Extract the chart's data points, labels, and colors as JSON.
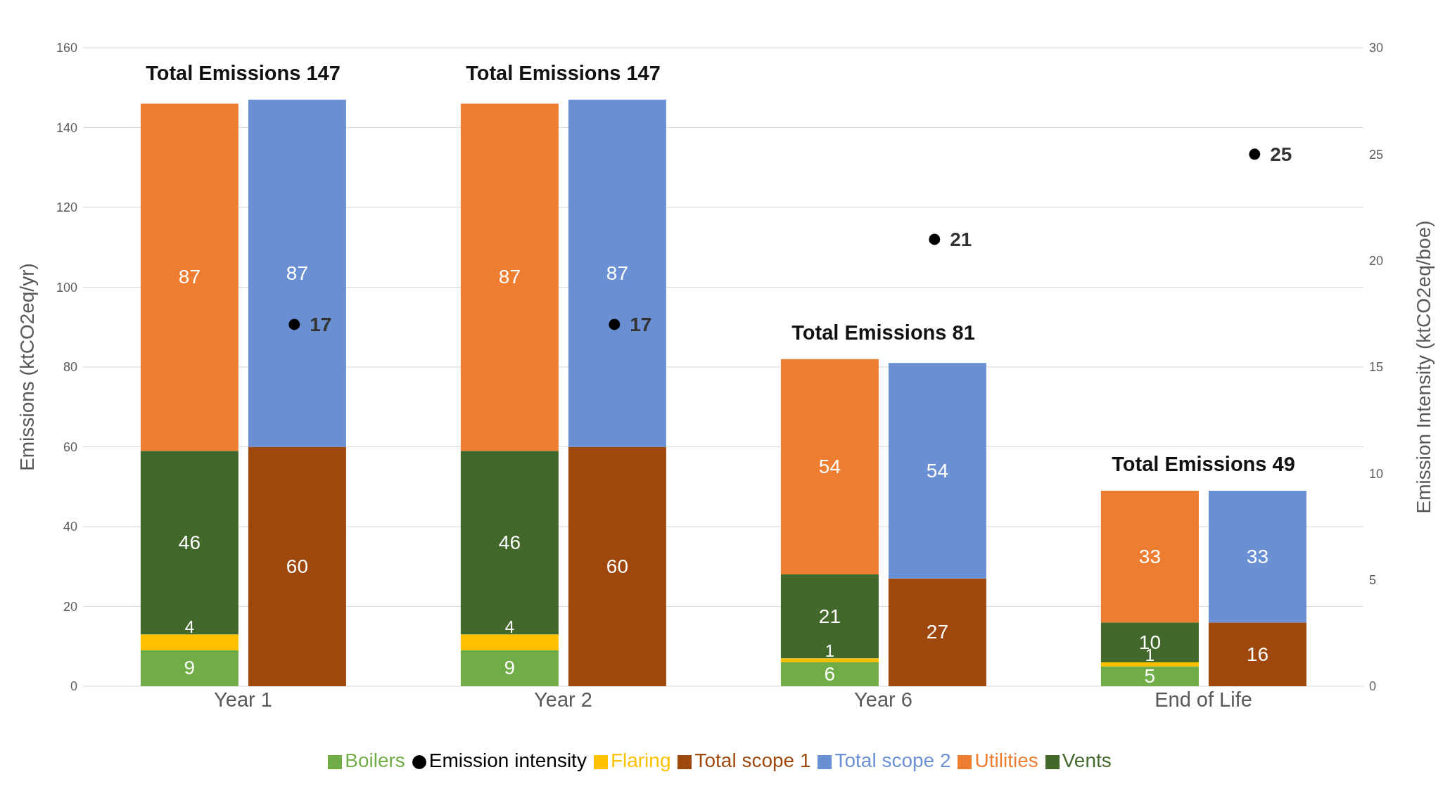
{
  "chart_data": {
    "type": "bar",
    "categories": [
      "Year 1",
      "Year 2",
      "Year 6",
      "End of Life"
    ],
    "ylabel": "Emissions (ktCO2eq/yr)",
    "y2label": "Emission Intensity (ktCO2eq/boe)",
    "ylim": [
      0,
      160
    ],
    "yticks": [
      0,
      20,
      40,
      60,
      80,
      100,
      120,
      140,
      160
    ],
    "y2lim": [
      0,
      30
    ],
    "y2ticks": [
      0,
      5,
      10,
      15,
      20,
      25,
      30
    ],
    "grid": "y",
    "legend": "bottom",
    "data_labels": true,
    "annotations": [
      "Total Emissions 147",
      "Total Emissions 147",
      "Total Emissions 81",
      "Total Emissions 49"
    ],
    "series": [
      {
        "name": "Boilers",
        "color": "#70ad47",
        "base": [
          0,
          0,
          0,
          0
        ],
        "values": [
          9,
          9,
          6,
          5
        ]
      },
      {
        "name": "Flaring",
        "color": "#ffc000",
        "base": [
          9,
          9,
          6,
          5
        ],
        "values": [
          4,
          4,
          1,
          1
        ]
      },
      {
        "name": "Vents",
        "color": "#43682b",
        "base": [
          13,
          13,
          7,
          6
        ],
        "values": [
          46,
          46,
          21,
          10
        ]
      },
      {
        "name": "Utilities",
        "color": "#ed7d31",
        "base": [
          59,
          59,
          28,
          16
        ],
        "values": [
          87,
          87,
          54,
          33
        ]
      },
      {
        "name": "Total scope 1",
        "color": "#9e480e",
        "base": [
          0,
          0,
          0,
          0
        ],
        "values": [
          60,
          60,
          27,
          16
        ]
      },
      {
        "name": "Total scope 2",
        "color": "#6a8fd2",
        "base": [
          60,
          60,
          27,
          16
        ],
        "values": [
          87,
          87,
          54,
          33
        ]
      },
      {
        "name": "Emission intensity",
        "type": "scatter",
        "axis": "y2",
        "marker": "circle",
        "color": "#000000",
        "values": [
          17,
          17,
          21,
          25
        ]
      }
    ]
  }
}
